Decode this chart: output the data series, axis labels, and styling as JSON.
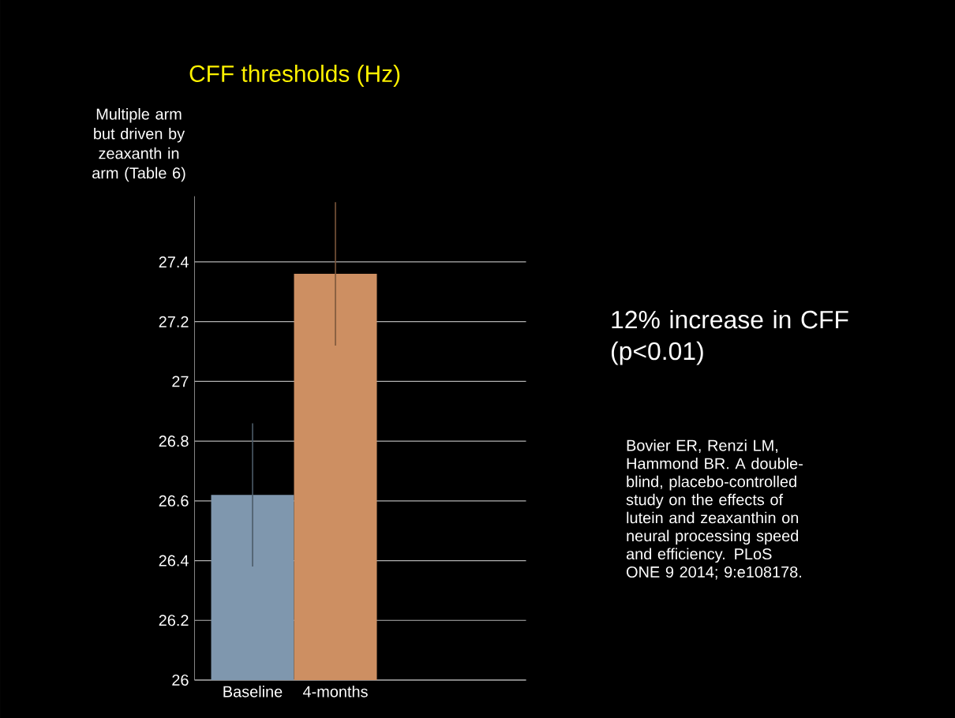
{
  "chart_data": {
    "type": "bar",
    "title": "CFF thresholds (Hz)",
    "categories": [
      "Baseline",
      "4-months"
    ],
    "values": [
      26.62,
      27.36
    ],
    "errors": [
      0.24,
      0.24
    ],
    "colors": [
      "#7f97ae",
      "#cd8f62"
    ],
    "ylim": [
      26,
      27.62
    ],
    "yticks": [
      26,
      26.2,
      26.4,
      26.6,
      26.8,
      27,
      27.2,
      27.4
    ],
    "grid": "y",
    "annotations": [
      "Multiple arm but driven by zeaxanth in arm (Table 6)",
      "12% increase in CFF (p<0.01)",
      "Bovier ER, Renzi LM, Hammond BR. A double-blind, placebo-controlled study on the effects of lutein and zeaxanthin on neural processing speed and efficiency. PLoS ONE 9 2014; 9:e108178."
    ]
  }
}
